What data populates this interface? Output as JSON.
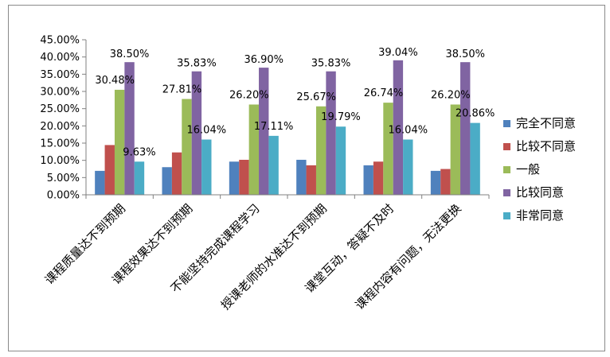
{
  "chart_data": {
    "type": "bar",
    "categories": [
      "课程质量达不到预期",
      "课程效果达不到预期",
      "不能坚持完成课程学习",
      "授课老师的水准达不到预期",
      "课堂互动，答疑不及时",
      "课程内容有问题，无法更换"
    ],
    "series": [
      {
        "name": "完全不同意",
        "color": "#4F81BD",
        "values": [
          6.95,
          8.02,
          9.63,
          10.16,
          8.56,
          6.95
        ]
      },
      {
        "name": "比较不同意",
        "color": "#C0504D",
        "values": [
          14.44,
          12.3,
          10.16,
          8.56,
          9.63,
          7.49
        ]
      },
      {
        "name": "一般",
        "color": "#9BBB59",
        "values": [
          30.48,
          27.81,
          26.2,
          25.67,
          26.74,
          26.2
        ]
      },
      {
        "name": "比较同意",
        "color": "#8064A2",
        "values": [
          38.5,
          35.83,
          36.9,
          35.83,
          39.04,
          38.5
        ]
      },
      {
        "name": "非常同意",
        "color": "#4BACC6",
        "values": [
          9.63,
          16.04,
          17.11,
          19.79,
          16.04,
          20.86
        ]
      }
    ],
    "data_labels": [
      {
        "series": 2,
        "category": 0,
        "text": "30.48%"
      },
      {
        "series": 3,
        "category": 0,
        "text": "38.50%"
      },
      {
        "series": 4,
        "category": 0,
        "text": "9.63%"
      },
      {
        "series": 2,
        "category": 1,
        "text": "27.81%"
      },
      {
        "series": 3,
        "category": 1,
        "text": "35.83%"
      },
      {
        "series": 4,
        "category": 1,
        "text": "16.04%"
      },
      {
        "series": 2,
        "category": 2,
        "text": "26.20%"
      },
      {
        "series": 3,
        "category": 2,
        "text": "36.90%"
      },
      {
        "series": 4,
        "category": 2,
        "text": "17.11%"
      },
      {
        "series": 2,
        "category": 3,
        "text": "25.67%"
      },
      {
        "series": 3,
        "category": 3,
        "text": "35.83%"
      },
      {
        "series": 4,
        "category": 3,
        "text": "19.79%"
      },
      {
        "series": 2,
        "category": 4,
        "text": "26.74%"
      },
      {
        "series": 3,
        "category": 4,
        "text": "39.04%"
      },
      {
        "series": 4,
        "category": 4,
        "text": "16.04%"
      },
      {
        "series": 2,
        "category": 5,
        "text": "26.20%"
      },
      {
        "series": 3,
        "category": 5,
        "text": "38.50%"
      },
      {
        "series": 4,
        "category": 5,
        "text": "20.86%"
      }
    ],
    "yticks": [
      "0.00%",
      "5.00%",
      "10.00%",
      "15.00%",
      "20.00%",
      "25.00%",
      "30.00%",
      "35.00%",
      "40.00%",
      "45.00%"
    ],
    "ylim": [
      0,
      45
    ],
    "title": "",
    "xlabel": "",
    "ylabel": "",
    "legend_position": "right",
    "grid": false
  }
}
